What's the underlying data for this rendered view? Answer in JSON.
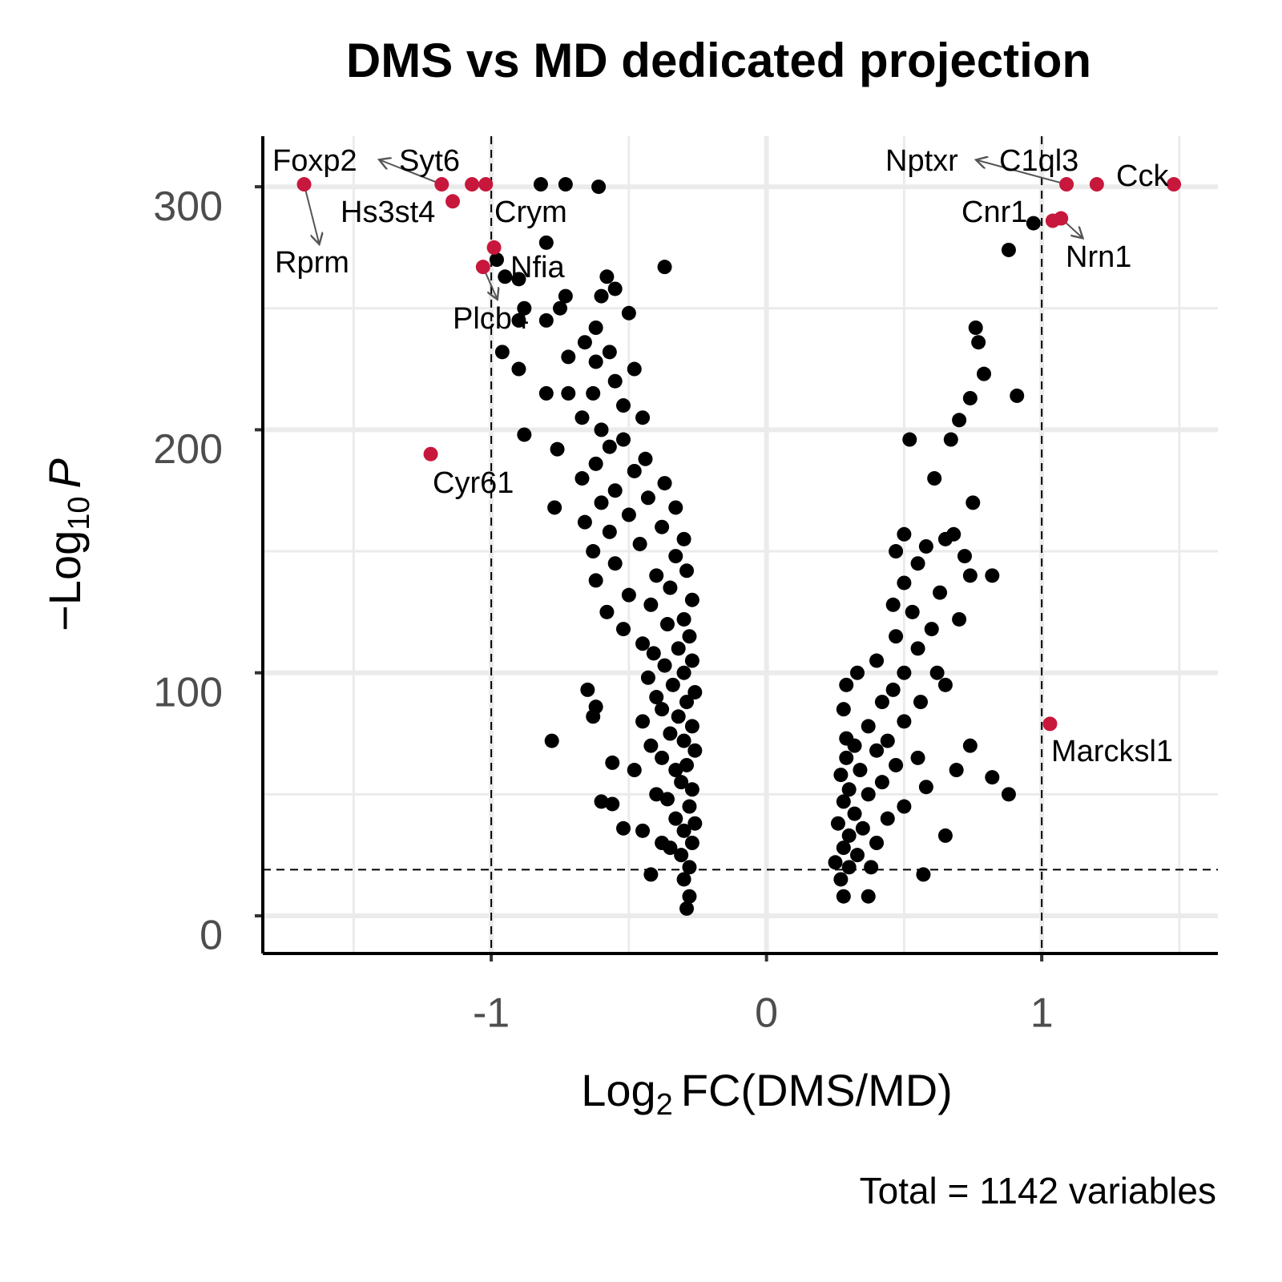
{
  "chart_data": {
    "type": "scatter",
    "title": "DMS vs MD dedicated projection",
    "xlabel": {
      "prefix": "Log",
      "sub": "2",
      "suffix": "FC(DMS/MD)"
    },
    "ylabel": {
      "prefix": "−Log",
      "sub": "10",
      "suffix": "P"
    },
    "caption": "Total = 1142 variables",
    "xlim": [
      -1.83,
      1.64
    ],
    "ylim": [
      -15.5,
      320.8
    ],
    "xticks": [
      -1,
      0,
      1
    ],
    "yticks": [
      0,
      100,
      200,
      300
    ],
    "xminor": [
      -1.5,
      -0.5,
      0.5,
      1.5
    ],
    "yminor": [
      50,
      150,
      250
    ],
    "grid": true,
    "vlines": [
      -1,
      1
    ],
    "hline": 19,
    "points": {
      "color": "#000000",
      "x": [
        -0.29,
        -0.28,
        -0.3,
        -0.42,
        -0.28,
        -0.31,
        -0.35,
        -0.27,
        -0.38,
        -0.45,
        -0.3,
        -0.26,
        -0.33,
        -0.52,
        -0.6,
        -0.56,
        -0.28,
        -0.36,
        -0.4,
        -0.27,
        -0.31,
        -0.48,
        -0.56,
        -0.33,
        -0.29,
        -0.38,
        -0.26,
        -0.42,
        -0.3,
        -0.35,
        -0.78,
        -0.27,
        -0.45,
        -0.32,
        -0.63,
        -0.38,
        -0.29,
        -0.62,
        -0.4,
        -0.26,
        -0.65,
        -0.34,
        -0.43,
        -0.3,
        -0.37,
        -0.27,
        -0.41,
        -0.32,
        -0.45,
        -0.28,
        -0.52,
        -0.36,
        -0.3,
        -0.58,
        -0.42,
        -0.27,
        -0.5,
        -0.35,
        -0.62,
        -0.4,
        -0.29,
        -0.55,
        -0.33,
        -0.63,
        -0.46,
        -0.3,
        -0.57,
        -0.38,
        -0.66,
        -0.5,
        -0.33,
        -0.77,
        -0.6,
        -0.43,
        -0.55,
        -0.37,
        -0.67,
        -0.48,
        -0.62,
        -0.44,
        -0.76,
        -0.57,
        -0.52,
        -0.88,
        -0.6,
        -0.45,
        -0.67,
        -0.52,
        -0.63,
        -0.72,
        -0.55,
        -0.8,
        -0.48,
        -0.62,
        -0.9,
        -0.57,
        -0.72,
        -0.66,
        -0.96,
        -0.62,
        -0.8,
        -0.9,
        -0.5,
        -0.75,
        -0.6,
        -0.88,
        -0.55,
        -0.73,
        -0.9,
        -0.58,
        -0.95,
        -0.8,
        -0.37,
        -0.98,
        -0.82,
        -0.73,
        -0.61,
        0.28,
        0.37,
        0.27,
        0.57,
        0.3,
        0.38,
        0.25,
        0.33,
        0.28,
        0.4,
        0.65,
        0.3,
        0.35,
        0.26,
        0.44,
        0.32,
        0.5,
        0.28,
        0.37,
        0.3,
        0.58,
        0.42,
        0.88,
        0.27,
        0.34,
        0.82,
        0.47,
        0.29,
        0.69,
        0.4,
        0.55,
        0.32,
        0.44,
        0.74,
        0.29,
        0.37,
        0.5,
        0.28,
        0.42,
        0.56,
        0.29,
        0.46,
        0.65,
        0.33,
        0.5,
        0.62,
        0.4,
        0.55,
        0.47,
        0.6,
        0.7,
        0.53,
        0.46,
        0.63,
        0.5,
        0.74,
        0.55,
        0.82,
        0.72,
        0.47,
        0.58,
        0.65,
        0.5,
        0.68,
        0.75,
        0.61,
        0.52,
        0.67,
        0.7,
        0.74,
        0.91,
        0.79,
        0.77,
        0.76,
        0.88,
        0.97
      ],
      "y": [
        3,
        8,
        15,
        17,
        20,
        25,
        28,
        30,
        30,
        35,
        35,
        38,
        40,
        36,
        47,
        46,
        45,
        48,
        50,
        52,
        55,
        60,
        63,
        60,
        62,
        65,
        68,
        70,
        72,
        75,
        72,
        78,
        80,
        82,
        82,
        85,
        88,
        86,
        90,
        92,
        93,
        95,
        98,
        100,
        103,
        105,
        108,
        110,
        112,
        115,
        118,
        120,
        122,
        125,
        128,
        130,
        132,
        135,
        138,
        140,
        142,
        145,
        148,
        150,
        153,
        155,
        158,
        160,
        162,
        165,
        168,
        168,
        170,
        172,
        175,
        178,
        180,
        183,
        186,
        188,
        192,
        193,
        196,
        198,
        200,
        205,
        205,
        210,
        215,
        215,
        220,
        215,
        225,
        228,
        225,
        232,
        230,
        236,
        232,
        242,
        245,
        245,
        248,
        250,
        255,
        250,
        258,
        255,
        262,
        263,
        263,
        277,
        267,
        270,
        301,
        301,
        300,
        8,
        8,
        15,
        17,
        20,
        20,
        22,
        25,
        28,
        30,
        33,
        33,
        36,
        38,
        40,
        42,
        45,
        47,
        50,
        52,
        53,
        55,
        50,
        58,
        60,
        57,
        62,
        65,
        60,
        68,
        65,
        70,
        72,
        70,
        73,
        78,
        80,
        85,
        88,
        88,
        95,
        93,
        95,
        100,
        100,
        100,
        105,
        110,
        115,
        118,
        122,
        125,
        128,
        133,
        137,
        140,
        145,
        140,
        148,
        150,
        152,
        155,
        157,
        157,
        170,
        180,
        196,
        196,
        204,
        213,
        214,
        223,
        236,
        242,
        274,
        285
      ]
    },
    "highlighted": {
      "color": "#c8173c",
      "x": [
        -1.68,
        -1.18,
        -1.14,
        -1.07,
        -1.02,
        -0.99,
        -1.03,
        -1.22,
        1.09,
        1.2,
        1.48,
        1.04,
        1.07,
        1.03
      ],
      "y": [
        301,
        301,
        294,
        301,
        301,
        275,
        267,
        190,
        301,
        301,
        301,
        286,
        287,
        79
      ],
      "labels": [
        "Rprm",
        "Foxp2",
        "Hs3st4",
        "Syt6",
        "Crym",
        "Nfia",
        "Plcb4",
        "Cyr61",
        "Nptxr",
        "C1ql3",
        "Cck",
        "Cnr1",
        "Nrn1",
        "Marcksl1"
      ]
    }
  }
}
